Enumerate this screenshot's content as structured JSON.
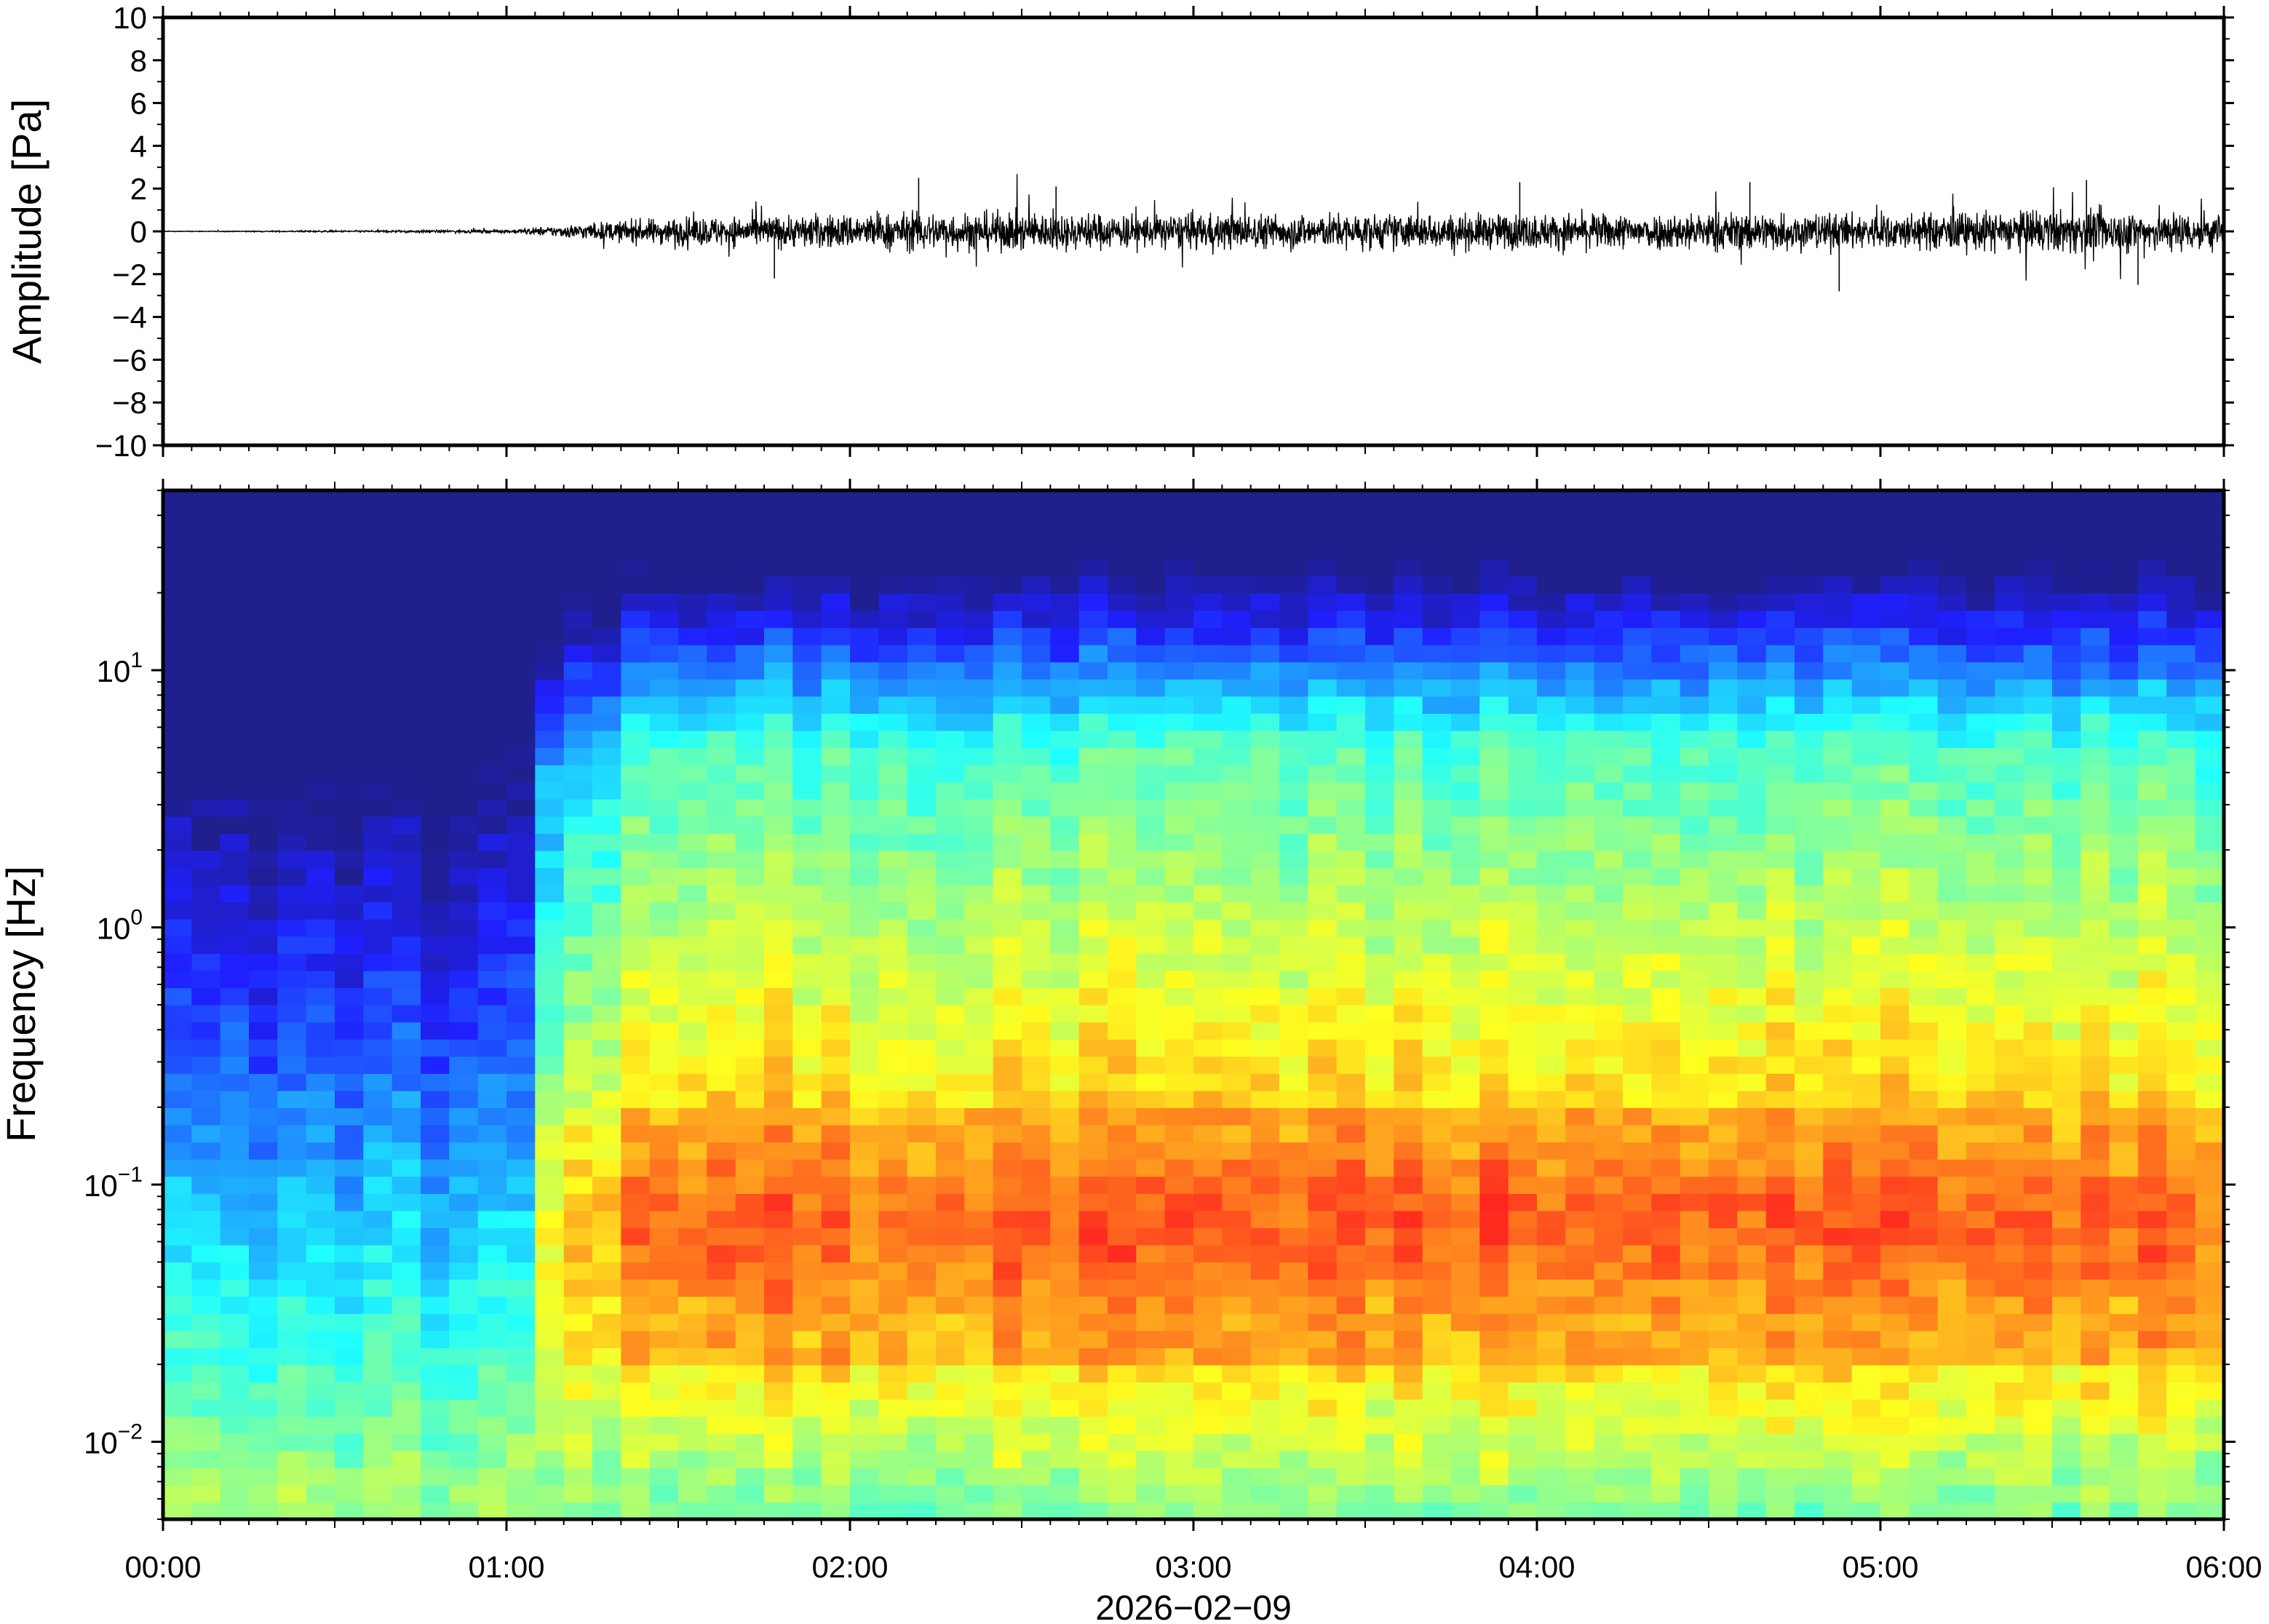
{
  "figure": {
    "date_label": "2026−02−09"
  },
  "chart_data": [
    {
      "type": "line",
      "panel": "waveform",
      "ylabel": "Amplitude [Pa]",
      "ylim": [
        -10,
        10
      ],
      "yticks": [
        10,
        8,
        6,
        4,
        2,
        0,
        -2,
        -4,
        -6,
        -8,
        -10
      ],
      "ytick_labels": [
        "10",
        "8",
        "6",
        "4",
        "2",
        "0",
        "−2",
        "−4",
        "−6",
        "−8",
        "−10"
      ],
      "x_unit": "hours after 00:00",
      "xlim": [
        0,
        6
      ],
      "series": [
        {
          "x": [
            0.0,
            0.25,
            0.5,
            0.75,
            1.0,
            1.1,
            1.25,
            1.5,
            1.75,
            2.0,
            2.25,
            2.5,
            2.75,
            3.0,
            3.25,
            3.5,
            3.75,
            4.0,
            4.25,
            4.5,
            4.75,
            5.0,
            5.25,
            5.5,
            5.75,
            6.0
          ],
          "envelope": [
            0.02,
            0.03,
            0.05,
            0.07,
            0.1,
            0.25,
            0.5,
            0.8,
            0.9,
            1.0,
            1.1,
            1.1,
            1.0,
            1.0,
            1.0,
            1.0,
            1.0,
            1.0,
            1.0,
            1.1,
            1.1,
            1.0,
            1.1,
            1.2,
            1.2,
            1.1
          ]
        }
      ],
      "spikes": [
        {
          "x": 1.78,
          "y": -2.2
        },
        {
          "x": 2.2,
          "y": 2.5
        },
        {
          "x": 2.6,
          "y": 2.1
        },
        {
          "x": 3.95,
          "y": 2.3
        },
        {
          "x": 4.62,
          "y": 2.3
        },
        {
          "x": 4.88,
          "y": -2.8
        },
        {
          "x": 5.6,
          "y": 2.4
        },
        {
          "x": 5.75,
          "y": -2.5
        }
      ]
    },
    {
      "type": "heatmap",
      "panel": "spectrogram",
      "ylabel": "Frequency [Hz]",
      "yscale": "log",
      "ylim": [
        0.005,
        50
      ],
      "ytick_labels": [
        {
          "value": 10,
          "base": "10",
          "exp": "1"
        },
        {
          "value": 1,
          "base": "10",
          "exp": "0"
        },
        {
          "value": 0.1,
          "base": "10",
          "exp": "−1"
        },
        {
          "value": 0.01,
          "base": "10",
          "exp": "−2"
        }
      ],
      "xlim": [
        0,
        6
      ],
      "xticks": [
        0,
        1,
        2,
        3,
        4,
        5,
        6
      ],
      "xtick_labels": [
        "00:00",
        "01:00",
        "02:00",
        "03:00",
        "04:00",
        "05:00",
        "06:00"
      ],
      "colormap": "jet",
      "colors": [
        "#00007f",
        "#0000ff",
        "#0080ff",
        "#00ffff",
        "#80ff80",
        "#ffff00",
        "#ff8000",
        "#ff0000"
      ],
      "time_bins": 72,
      "freq_bins": 60
    }
  ]
}
